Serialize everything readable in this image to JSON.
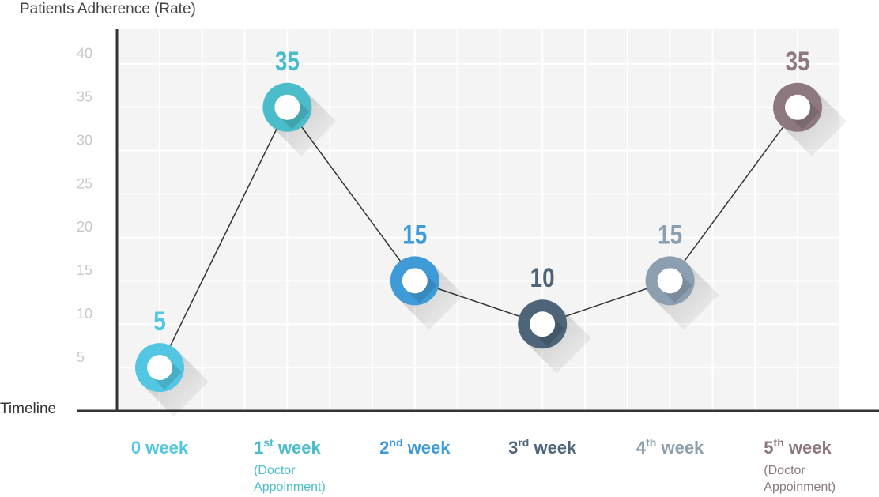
{
  "chart_data": {
    "type": "line",
    "title": "Patients Adherence (Rate)",
    "x_label": "Timeline",
    "categories": [
      "0 week",
      "1st week",
      "2nd week",
      "3rd week",
      "4th week",
      "5th week"
    ],
    "category_notes": [
      null,
      "(Doctor Appoinment)",
      null,
      null,
      null,
      "(Doctor Appoinment)"
    ],
    "values": [
      5,
      35,
      15,
      10,
      15,
      35
    ],
    "point_colors": [
      "#52c6e2",
      "#4bbcc9",
      "#3f9bd8",
      "#4d6479",
      "#8c9fb1",
      "#8d7880"
    ],
    "line_color": "#333333",
    "ylim": [
      0,
      44
    ],
    "yticks": [
      5,
      10,
      15,
      20,
      25,
      30,
      35,
      40
    ],
    "grid": true
  }
}
